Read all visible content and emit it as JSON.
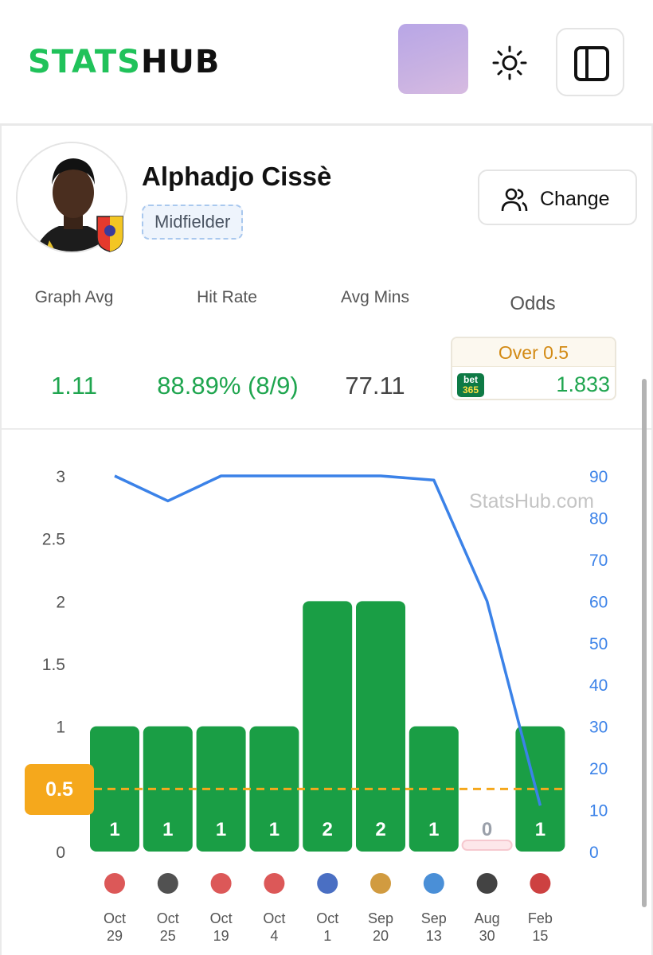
{
  "header": {
    "logo_green": "STATS",
    "logo_dark": "HUB",
    "theme_icon": "sun-icon",
    "sidebar_icon": "sidebar-panel-icon"
  },
  "player": {
    "name": "Alphadjo Cissè",
    "position": "Midfielder",
    "change_label": "Change"
  },
  "stats": {
    "graph_avg_label": "Graph Avg",
    "graph_avg_value": "1.11",
    "hit_rate_label": "Hit Rate",
    "hit_rate_value": "88.89% (8/9)",
    "avg_mins_label": "Avg Mins",
    "avg_mins_value": "77.11",
    "odds_label": "Odds",
    "odds_line": "Over 0.5",
    "bookmaker_top": "bet",
    "bookmaker_bottom": "365",
    "odds_value": "1.833"
  },
  "chart_watermark": "StatsHub.com",
  "threshold_label": "0.5",
  "colors": {
    "green": "#1fa54f",
    "bar_green": "#1a9e45",
    "line_blue": "#3b82e8",
    "threshold_orange": "#f5a81c",
    "zero_pink": "#f6c8cf"
  },
  "chart_data": {
    "type": "bar",
    "categories": [
      "Oct 29",
      "Oct 25",
      "Oct 19",
      "Oct 4",
      "Oct 1",
      "Sep 20",
      "Sep 13",
      "Aug 30",
      "Feb 15"
    ],
    "x_month": [
      "Oct",
      "Oct",
      "Oct",
      "Oct",
      "Oct",
      "Sep",
      "Sep",
      "Aug",
      "Feb"
    ],
    "x_day": [
      "29",
      "25",
      "19",
      "4",
      "1",
      "20",
      "13",
      "30",
      "15"
    ],
    "values": [
      1,
      1,
      1,
      1,
      2,
      2,
      1,
      0,
      1
    ],
    "value_labels": [
      "1",
      "1",
      "1",
      "1",
      "2",
      "2",
      "1",
      "0",
      "1"
    ],
    "minutes": [
      90,
      84,
      90,
      90,
      90,
      90,
      89,
      60,
      11
    ],
    "threshold": 0.5,
    "ylim": [
      0,
      3
    ],
    "yticks": [
      "0",
      "0.5",
      "1",
      "1.5",
      "2",
      "2.5",
      "3"
    ],
    "y2lim": [
      0,
      90
    ],
    "y2ticks": [
      "0",
      "10",
      "20",
      "30",
      "40",
      "50",
      "60",
      "70",
      "80",
      "90"
    ],
    "grid": false
  }
}
